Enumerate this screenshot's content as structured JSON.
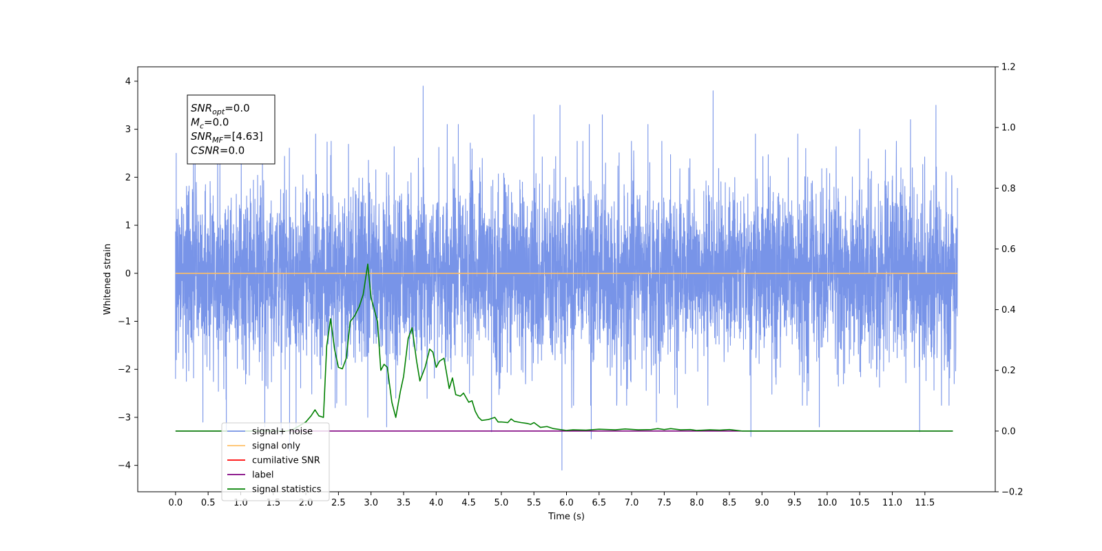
{
  "chart_data": {
    "type": "line",
    "title": "",
    "xlabel": "Time (s)",
    "ylabel": "Whitened strain",
    "y2label": "",
    "xlim": [
      -0.58,
      12.58
    ],
    "ylim": [
      -4.55,
      4.3
    ],
    "y2lim": [
      -0.2,
      1.2
    ],
    "x_ticks": [
      0.0,
      0.5,
      1.0,
      1.5,
      2.0,
      2.5,
      3.0,
      3.5,
      4.0,
      4.5,
      5.0,
      5.5,
      6.0,
      6.5,
      7.0,
      7.5,
      8.0,
      8.5,
      9.0,
      9.5,
      10.0,
      10.5,
      11.0,
      11.5
    ],
    "x_tick_labels": [
      "0.0",
      "0.5",
      "1.0",
      "1.5",
      "2.0",
      "2.5",
      "3.0",
      "3.5",
      "4.0",
      "4.5",
      "5.0",
      "5.5",
      "6.0",
      "6.5",
      "7.0",
      "7.5",
      "8.0",
      "8.5",
      "9.0",
      "9.5",
      "10.0",
      "10.5",
      "11.0",
      "11.5"
    ],
    "y_ticks": [
      -4,
      -3,
      -2,
      -1,
      0,
      1,
      2,
      3,
      4
    ],
    "y_tick_labels": [
      "−4",
      "−3",
      "−2",
      "−1",
      "0",
      "1",
      "2",
      "3",
      "4"
    ],
    "y2_ticks": [
      -0.2,
      0.0,
      0.2,
      0.4,
      0.6,
      0.8,
      1.0,
      1.2
    ],
    "y2_tick_labels": [
      "−0.2",
      "0.0",
      "0.2",
      "0.4",
      "0.6",
      "0.8",
      "1.0",
      "1.2"
    ],
    "grid": false,
    "legend_placement": "lower-left",
    "series": [
      {
        "name": "signal+ noise",
        "axis": "left",
        "color": "#7894e8",
        "kind": "noise",
        "x_range": [
          0.0,
          12.0
        ],
        "typical_amplitude": 1.5,
        "peaks": [
          {
            "x": 0.01,
            "y": 2.5
          },
          {
            "x": 0.0,
            "y": -2.2
          },
          {
            "x": 0.3,
            "y": 2.4
          },
          {
            "x": 0.42,
            "y": -3.1
          },
          {
            "x": 0.78,
            "y": -3.3
          },
          {
            "x": 1.37,
            "y": -3.2
          },
          {
            "x": 1.62,
            "y": -3.4
          },
          {
            "x": 1.75,
            "y": -3.7
          },
          {
            "x": 1.85,
            "y": -3.3
          },
          {
            "x": 2.15,
            "y": 2.9
          },
          {
            "x": 2.45,
            "y": -2.8
          },
          {
            "x": 2.95,
            "y": -3.0
          },
          {
            "x": 3.24,
            "y": -3.2
          },
          {
            "x": 3.38,
            "y": -2.6
          },
          {
            "x": 3.8,
            "y": 3.9
          },
          {
            "x": 4.17,
            "y": 3.1
          },
          {
            "x": 4.34,
            "y": 3.1
          },
          {
            "x": 4.85,
            "y": -3.3
          },
          {
            "x": 5.5,
            "y": 3.3
          },
          {
            "x": 5.9,
            "y": 3.5
          },
          {
            "x": 5.93,
            "y": -4.1
          },
          {
            "x": 6.08,
            "y": -2.8
          },
          {
            "x": 6.35,
            "y": 3.1
          },
          {
            "x": 6.38,
            "y": -3.45
          },
          {
            "x": 6.55,
            "y": 3.3
          },
          {
            "x": 7.25,
            "y": 3.1
          },
          {
            "x": 7.38,
            "y": -3.1
          },
          {
            "x": 7.7,
            "y": -2.8
          },
          {
            "x": 8.25,
            "y": 3.8
          },
          {
            "x": 8.83,
            "y": -3.4
          },
          {
            "x": 8.9,
            "y": 2.9
          },
          {
            "x": 9.55,
            "y": 2.9
          },
          {
            "x": 9.88,
            "y": -3.2
          },
          {
            "x": 10.5,
            "y": 3.0
          },
          {
            "x": 11.28,
            "y": 3.2
          },
          {
            "x": 11.42,
            "y": -3.3
          },
          {
            "x": 11.67,
            "y": 3.5
          },
          {
            "x": 11.95,
            "y": -2.3
          },
          {
            "x": 12.0,
            "y": 1.2
          }
        ]
      },
      {
        "name": "signal only",
        "axis": "left",
        "color": "#ffbf66",
        "x": [
          0.0,
          12.0
        ],
        "y": [
          0.0,
          0.0
        ]
      },
      {
        "name": "cumilative SNR",
        "axis": "right",
        "color": "#ff0000",
        "x": [],
        "y": []
      },
      {
        "name": "label",
        "axis": "right",
        "color": "#800080",
        "x": [
          0.0,
          11.93
        ],
        "y": [
          0.0,
          0.0
        ]
      },
      {
        "name": "signal statistics",
        "axis": "right",
        "color": "#008000",
        "x": [
          0.0,
          1.7,
          1.8,
          2.0,
          2.08,
          2.14,
          2.2,
          2.27,
          2.32,
          2.38,
          2.44,
          2.5,
          2.56,
          2.62,
          2.68,
          2.75,
          2.82,
          2.88,
          2.95,
          3.0,
          3.1,
          3.15,
          3.2,
          3.25,
          3.32,
          3.38,
          3.45,
          3.5,
          3.57,
          3.63,
          3.7,
          3.75,
          3.83,
          3.9,
          3.95,
          4.0,
          4.05,
          4.12,
          4.2,
          4.25,
          4.3,
          4.37,
          4.42,
          4.5,
          4.55,
          4.6,
          4.65,
          4.7,
          4.8,
          4.9,
          4.95,
          5.0,
          5.1,
          5.15,
          5.2,
          5.3,
          5.4,
          5.45,
          5.5,
          5.6,
          5.7,
          5.8,
          6.0,
          6.1,
          6.3,
          6.5,
          6.75,
          6.9,
          7.1,
          7.3,
          7.4,
          7.5,
          7.6,
          7.75,
          7.9,
          8.0,
          8.2,
          8.35,
          8.5,
          8.7,
          9.0,
          11.93
        ],
        "y": [
          0.0,
          0.0,
          0.005,
          0.03,
          0.05,
          0.07,
          0.05,
          0.045,
          0.28,
          0.37,
          0.27,
          0.21,
          0.205,
          0.24,
          0.36,
          0.38,
          0.41,
          0.45,
          0.55,
          0.44,
          0.36,
          0.2,
          0.22,
          0.21,
          0.095,
          0.045,
          0.13,
          0.18,
          0.305,
          0.34,
          0.23,
          0.165,
          0.21,
          0.27,
          0.26,
          0.21,
          0.23,
          0.24,
          0.14,
          0.175,
          0.12,
          0.115,
          0.125,
          0.095,
          0.1,
          0.065,
          0.045,
          0.035,
          0.038,
          0.045,
          0.03,
          0.03,
          0.028,
          0.04,
          0.032,
          0.028,
          0.025,
          0.022,
          0.028,
          0.012,
          0.015,
          0.008,
          0.002,
          0.004,
          0.003,
          0.006,
          0.004,
          0.007,
          0.004,
          0.005,
          0.008,
          0.005,
          0.008,
          0.004,
          0.005,
          0.002,
          0.004,
          0.003,
          0.005,
          0.0,
          0.0,
          0.0
        ]
      }
    ],
    "annotation": {
      "lines": [
        {
          "var": "SNR",
          "sub": "opt",
          "rest": "=0.0"
        },
        {
          "var": "M",
          "sub": "c",
          "rest": "=0.0"
        },
        {
          "var": "SNR",
          "sub": "MF",
          "rest": "=[4.63]"
        },
        {
          "var": "CSNR",
          "sub": "",
          "rest": "=0.0"
        }
      ]
    }
  }
}
